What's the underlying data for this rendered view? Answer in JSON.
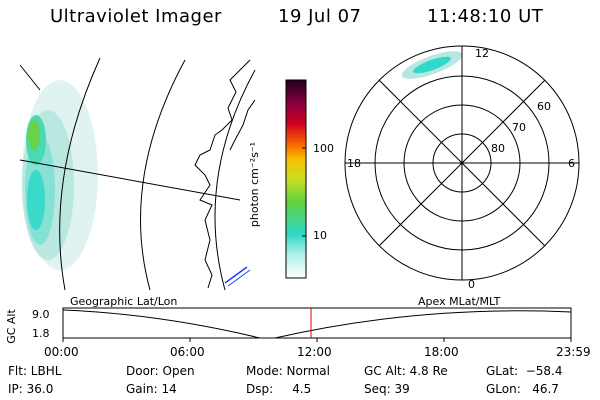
{
  "header": {
    "instrument": "Ultraviolet Imager",
    "date": "19 Jul 07",
    "time": "11:48:10 UT"
  },
  "colorbar": {
    "unit_label": "photon cm⁻²s⁻¹",
    "ticks": [
      "100",
      "10"
    ]
  },
  "polar": {
    "hour_labels": {
      "top": "12",
      "left": "18",
      "right": "6",
      "bottom": "0"
    },
    "lat_labels": [
      "60",
      "70",
      "80"
    ]
  },
  "altitude_plot": {
    "left_caption": "Geographic Lat/Lon",
    "right_caption": "Apex  MLat/MLT",
    "axis_label": "GC Alt",
    "y_ticks": [
      "9.0",
      "1.8"
    ],
    "x_ticks": [
      "00:00",
      "06:00",
      "12:00",
      "18:00",
      "23:59"
    ]
  },
  "info": {
    "flt": "Flt: LBHL",
    "ip": "IP: 36.0",
    "door": "Door: Open",
    "gain": "Gain: 14",
    "mode": "Mode: Normal",
    "dsp": "Dsp:     4.5",
    "gcalt": "GC Alt: 4.8 Re",
    "seq": "Seq: 39",
    "glat": "GLat:  −58.4",
    "glon": "GLon:   46.7"
  },
  "colors": {
    "marker": "#e00000",
    "aurora_low": "#b8e6e0",
    "aurora_mid": "#30d8c8",
    "aurora_high": "#60d040"
  }
}
